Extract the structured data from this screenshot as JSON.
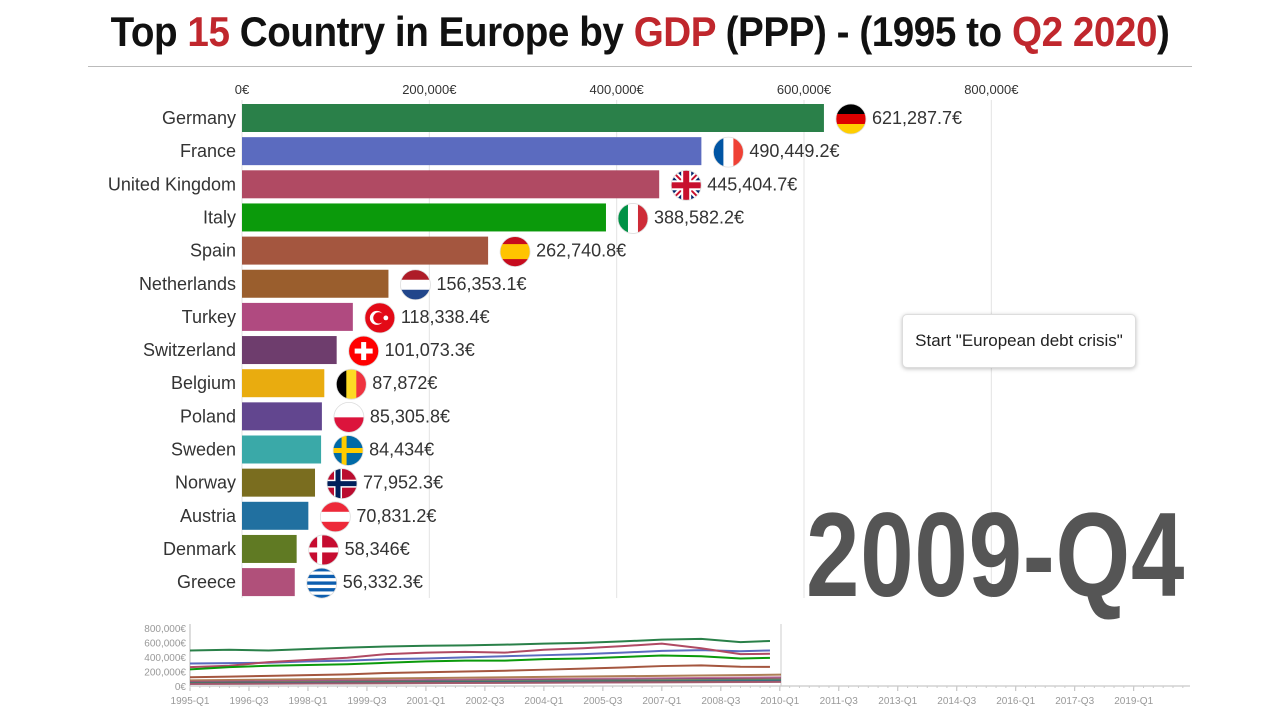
{
  "title_parts": [
    {
      "text": "Top ",
      "red": false
    },
    {
      "text": "15",
      "red": true
    },
    {
      "text": " Country in Europe by ",
      "red": false
    },
    {
      "text": "GDP",
      "red": true
    },
    {
      "text": " (PPP) - (1995 to ",
      "red": false
    },
    {
      "text": "Q2 2020",
      "red": true
    },
    {
      "text": ")",
      "red": false
    }
  ],
  "tooltip": "Start \"European debt crisis\"",
  "period": "2009-Q4",
  "chart_data": [
    {
      "type": "bar",
      "orientation": "horizontal",
      "xlim": [
        0,
        800000
      ],
      "x_ticks": [
        0,
        200000,
        400000,
        600000,
        800000
      ],
      "x_tick_labels": [
        "0€",
        "200,000€",
        "400,000€",
        "600,000€",
        "800,000€"
      ],
      "grid": true,
      "categories": [
        "Germany",
        "France",
        "United Kingdom",
        "Italy",
        "Spain",
        "Netherlands",
        "Turkey",
        "Switzerland",
        "Belgium",
        "Poland",
        "Sweden",
        "Norway",
        "Austria",
        "Denmark",
        "Greece"
      ],
      "values": [
        621287.7,
        490449.2,
        445404.7,
        388582.2,
        262740.8,
        156353.1,
        118338.4,
        101073.3,
        87872,
        85305.8,
        84434,
        77952.3,
        70831.2,
        58346,
        56332.3
      ],
      "value_labels": [
        "621,287.7€",
        "490,449.2€",
        "445,404.7€",
        "388,582.2€",
        "262,740.8€",
        "156,353.1€",
        "118,338.4€",
        "101,073.3€",
        "87,872€",
        "85,305.8€",
        "84,434€",
        "77,952.3€",
        "70,831.2€",
        "58,346€",
        "56,332.3€"
      ],
      "colors": [
        "#2a8049",
        "#5b6bbf",
        "#b04a63",
        "#0b9a0b",
        "#a4563f",
        "#9a5e2d",
        "#b04a80",
        "#6e3d6d",
        "#e9ac0f",
        "#62468f",
        "#3aa9a8",
        "#7a6d1f",
        "#2170a0",
        "#607a23",
        "#b0507a"
      ],
      "flags": [
        "de",
        "fr",
        "gb",
        "it",
        "es",
        "nl",
        "tr",
        "ch",
        "be",
        "pl",
        "se",
        "no",
        "at",
        "dk",
        "gr"
      ]
    },
    {
      "type": "line",
      "ylim": [
        0,
        800000
      ],
      "y_tick_labels": [
        "800,000€",
        "600,000€",
        "400,000€",
        "200,000€",
        "0€"
      ],
      "y_ticks": [
        800000,
        600000,
        400000,
        200000,
        0
      ],
      "x_tick_labels": [
        "1995-Q1",
        "1996-Q3",
        "1998-Q1",
        "1999-Q3",
        "2001-Q1",
        "2002-Q3",
        "2004-Q1",
        "2005-Q3",
        "2007-Q1",
        "2008-Q3",
        "2010-Q1",
        "2011-Q3",
        "2013-Q1",
        "2014-Q3",
        "2016-Q1",
        "2017-Q3",
        "2019-Q1"
      ],
      "x": [
        "1995",
        "1996",
        "1997",
        "1998",
        "1999",
        "2000",
        "2001",
        "2002",
        "2003",
        "2004",
        "2005",
        "2006",
        "2007",
        "2008",
        "2009",
        "2009-Q4"
      ],
      "series": [
        {
          "values": [
            490000,
            500000,
            490000,
            510000,
            530000,
            545000,
            555000,
            560000,
            570000,
            585000,
            595000,
            615000,
            640000,
            650000,
            605000,
            621000
          ],
          "color": "#2a8049"
        },
        {
          "values": [
            310000,
            315000,
            320000,
            340000,
            350000,
            370000,
            380000,
            395000,
            410000,
            425000,
            440000,
            460000,
            485000,
            495000,
            480000,
            490000
          ],
          "color": "#5b6bbf"
        },
        {
          "values": [
            260000,
            280000,
            330000,
            360000,
            390000,
            440000,
            460000,
            470000,
            460000,
            500000,
            520000,
            550000,
            585000,
            520000,
            440000,
            445000
          ],
          "color": "#b04a63"
        },
        {
          "values": [
            230000,
            260000,
            280000,
            290000,
            300000,
            320000,
            340000,
            350000,
            350000,
            370000,
            380000,
            400000,
            420000,
            410000,
            380000,
            388000
          ],
          "color": "#0b9a0b"
        },
        {
          "values": [
            120000,
            130000,
            140000,
            150000,
            160000,
            180000,
            190000,
            200000,
            210000,
            225000,
            240000,
            255000,
            275000,
            285000,
            265000,
            263000
          ],
          "color": "#a4563f"
        }
      ]
    }
  ]
}
